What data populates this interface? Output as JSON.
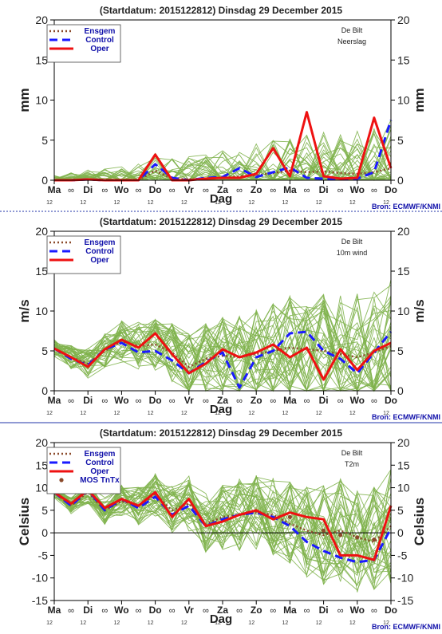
{
  "days": [
    "Ma",
    "Di",
    "Wo",
    "Do",
    "Vr",
    "Za",
    "Zo",
    "Ma",
    "Di",
    "Wo",
    "Do"
  ],
  "sub_ticks": [
    "12",
    "12",
    "12",
    "12",
    "12",
    "12",
    "12",
    "12",
    "12",
    "12",
    "12"
  ],
  "source": "Bron: ECMWF/KNMI",
  "xlabel": "Dag",
  "colors": {
    "ens": "#7fb24d",
    "ensgem": "#8b4a2b",
    "control": "#1a1aff",
    "oper": "#ee1111",
    "frame": "#000000",
    "title": "#222222",
    "legend_text": "#1010aa",
    "sep": "#2233aa"
  },
  "chart_data": [
    {
      "type": "line",
      "title": "(Startdatum: 2015122812)   Dinsdag   29 December  2015",
      "station": "De Bilt",
      "variable": "Neerslag",
      "ylabel": "mm",
      "ylim": [
        0,
        20
      ],
      "yticks": [
        "0",
        "5",
        "10",
        "15",
        "20"
      ],
      "legend": [
        "Ensgem",
        "Control",
        "Oper"
      ],
      "x_days": [
        0,
        0.5,
        1,
        1.5,
        2,
        2.5,
        3,
        3.5,
        4,
        4.5,
        5,
        5.5,
        6,
        6.5,
        7,
        7.5,
        8,
        8.5,
        9,
        9.5,
        10
      ],
      "series": [
        {
          "name": "Ensgem",
          "values": [
            0,
            0,
            0.1,
            0,
            0,
            0,
            1.2,
            0.2,
            0.1,
            0.2,
            0.3,
            0.5,
            0.6,
            0.9,
            1.2,
            1.0,
            1.1,
            0.9,
            0.8,
            1.0,
            1.5
          ]
        },
        {
          "name": "Control",
          "values": [
            0,
            0,
            0.1,
            0,
            0,
            0,
            2.0,
            0.3,
            0,
            0.3,
            0.4,
            1.5,
            0.4,
            1.0,
            1.6,
            0.3,
            0.2,
            0.1,
            0.2,
            1.0,
            7.5
          ]
        },
        {
          "name": "Oper",
          "values": [
            0,
            0,
            0.1,
            0,
            0,
            0,
            3.2,
            0,
            0,
            0.2,
            0.3,
            0.3,
            0.8,
            4.0,
            0.5,
            8.5,
            0.5,
            0.2,
            0.3,
            7.8,
            1.5
          ]
        }
      ]
    },
    {
      "type": "line",
      "title": "(Startdatum: 2015122812)   Dinsdag   29 December  2015",
      "station": "De Bilt",
      "variable": "10m wind",
      "ylabel": "m/s",
      "ylim": [
        0,
        20
      ],
      "yticks": [
        "0",
        "5",
        "10",
        "15",
        "20"
      ],
      "legend": [
        "Ensgem",
        "Control",
        "Oper"
      ],
      "x_days": [
        0,
        0.5,
        1,
        1.5,
        2,
        2.5,
        3,
        3.5,
        4,
        4.5,
        5,
        5.5,
        6,
        6.5,
        7,
        7.5,
        8,
        8.5,
        9,
        9.5,
        10
      ],
      "series": [
        {
          "name": "Ensgem",
          "values": [
            5.3,
            4.2,
            3.4,
            5.0,
            6.2,
            5.6,
            5.8,
            4.8,
            3.0,
            4.0,
            4.4,
            4.2,
            4.6,
            5.0,
            5.4,
            5.2,
            5.0,
            4.6,
            4.2,
            4.8,
            5.6
          ]
        },
        {
          "name": "Control",
          "values": [
            5.3,
            4.0,
            3.2,
            5.2,
            6.0,
            4.8,
            5.0,
            3.8,
            2.2,
            3.6,
            4.8,
            0.4,
            4.2,
            5.0,
            7.2,
            7.4,
            5.0,
            4.0,
            2.2,
            4.8,
            7.4
          ]
        },
        {
          "name": "Oper",
          "values": [
            5.3,
            4.2,
            3.0,
            5.2,
            6.4,
            5.4,
            7.2,
            4.6,
            2.2,
            3.4,
            5.2,
            4.2,
            4.8,
            5.8,
            4.2,
            5.4,
            1.4,
            5.2,
            2.6,
            5.0,
            6.0
          ]
        }
      ]
    },
    {
      "type": "line",
      "title": "(Startdatum: 2015122812)   Dinsdag   29 December  2015",
      "station": "De Bilt",
      "variable": "T2m",
      "ylabel": "Celsius",
      "ylim": [
        -15,
        20
      ],
      "yticks": [
        "-15",
        "-10",
        "-5",
        "0",
        "5",
        "10",
        "15",
        "20"
      ],
      "legend": [
        "Ensgem",
        "Control",
        "Oper",
        "MOS TnTx"
      ],
      "x_days": [
        0,
        0.5,
        1,
        1.5,
        2,
        2.5,
        3,
        3.5,
        4,
        4.5,
        5,
        5.5,
        6,
        6.5,
        7,
        7.5,
        8,
        8.5,
        9,
        9.5,
        10
      ],
      "series": [
        {
          "name": "Ensgem",
          "values": [
            9.0,
            6.0,
            9.0,
            5.0,
            7.0,
            6.0,
            8.5,
            5.0,
            6.5,
            2.0,
            3.5,
            4.0,
            4.5,
            4.0,
            2.0,
            0.5,
            -0.5,
            0.5,
            -1.0,
            -2.0,
            1.5
          ]
        },
        {
          "name": "Control",
          "values": [
            9.0,
            6.0,
            9.5,
            5.0,
            7.5,
            5.5,
            8.0,
            4.0,
            6.0,
            1.5,
            3.0,
            4.0,
            4.5,
            3.5,
            1.5,
            -2.0,
            -4.0,
            -5.5,
            -6.5,
            -6.0,
            1.0
          ]
        },
        {
          "name": "Oper",
          "values": [
            9.0,
            6.5,
            9.5,
            5.5,
            7.5,
            6.0,
            9.0,
            3.5,
            7.5,
            1.5,
            2.5,
            4.0,
            5.0,
            3.0,
            4.5,
            3.5,
            3.0,
            -5.0,
            -5.0,
            -6.0,
            6.0
          ]
        }
      ],
      "mos": [
        [
          7,
          3.5
        ],
        [
          8,
          0.5
        ],
        [
          8.5,
          -0.5
        ],
        [
          9,
          -1.0
        ],
        [
          9.5,
          -1.5
        ]
      ]
    }
  ]
}
